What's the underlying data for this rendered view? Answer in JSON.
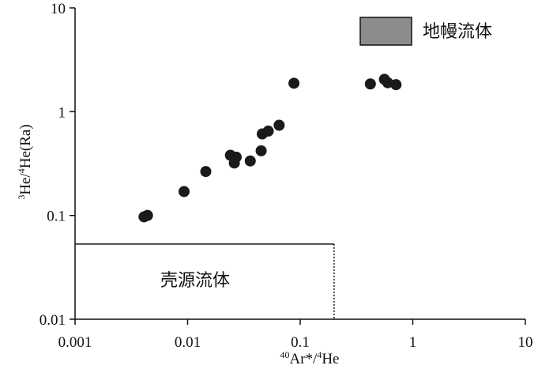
{
  "chart_data": {
    "type": "scatter",
    "title": "",
    "x_scale": "log",
    "y_scale": "log",
    "xlim": [
      0.001,
      10
    ],
    "ylim": [
      0.01,
      10
    ],
    "x_ticks": [
      0.001,
      0.01,
      0.1,
      1,
      10
    ],
    "x_tick_labels": [
      "0.001",
      "0.01",
      "0.1",
      "1",
      "10"
    ],
    "y_ticks": [
      0.01,
      0.1,
      1,
      10
    ],
    "y_tick_labels": [
      "0.01",
      "0.1",
      "1",
      "10"
    ],
    "xlabel": {
      "sup1": "40",
      "base1": "Ar*/",
      "sup2": "4",
      "base2": "He"
    },
    "ylabel": {
      "sup1": "3",
      "base1": "He/",
      "sup2": "4",
      "base2": "He(Ra)"
    },
    "grid": false,
    "point_color": "#1a1a1a",
    "points": [
      {
        "x": 0.0041,
        "y": 0.097
      },
      {
        "x": 0.0044,
        "y": 0.1
      },
      {
        "x": 0.0093,
        "y": 0.17
      },
      {
        "x": 0.0145,
        "y": 0.265
      },
      {
        "x": 0.024,
        "y": 0.38
      },
      {
        "x": 0.026,
        "y": 0.32
      },
      {
        "x": 0.027,
        "y": 0.365
      },
      {
        "x": 0.036,
        "y": 0.335
      },
      {
        "x": 0.045,
        "y": 0.42
      },
      {
        "x": 0.046,
        "y": 0.61
      },
      {
        "x": 0.052,
        "y": 0.65
      },
      {
        "x": 0.065,
        "y": 0.74
      },
      {
        "x": 0.088,
        "y": 1.88
      },
      {
        "x": 0.42,
        "y": 1.85
      },
      {
        "x": 0.56,
        "y": 2.05
      },
      {
        "x": 0.6,
        "y": 1.9
      },
      {
        "x": 0.71,
        "y": 1.82
      }
    ],
    "crust_region": {
      "label": "壳源流体",
      "x_max": 0.2,
      "y_max": 0.053
    },
    "legend": {
      "label": "地幔流体",
      "swatch_color": "#8c8c8c",
      "position": "top-right"
    }
  }
}
